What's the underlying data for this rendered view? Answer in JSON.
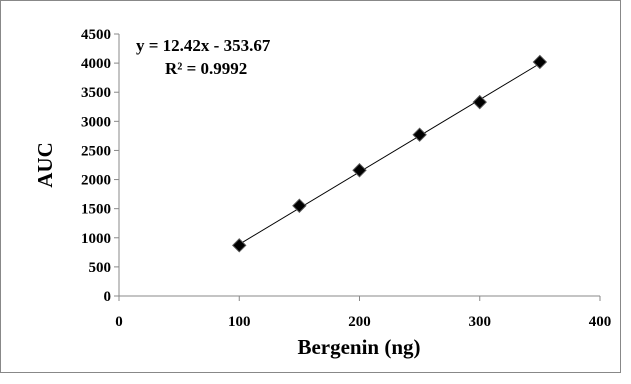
{
  "chart_data": {
    "type": "scatter",
    "title": "",
    "xlabel": "Bergenin (ng)",
    "ylabel": "AUC",
    "xlim": [
      0,
      400
    ],
    "ylim": [
      0,
      4500
    ],
    "x_ticks": [
      0,
      100,
      200,
      300,
      400
    ],
    "y_ticks": [
      0,
      500,
      1000,
      1500,
      2000,
      2500,
      3000,
      3500,
      4000,
      4500
    ],
    "grid": false,
    "legend": "none",
    "marker": "diamond",
    "marker_color": "#000000",
    "series": [
      {
        "x": [
          100,
          150,
          200,
          250,
          300,
          350
        ],
        "y": [
          870,
          1550,
          2160,
          2770,
          3330,
          4020
        ]
      }
    ],
    "trendline": {
      "type": "linear",
      "slope": 12.42,
      "intercept": -353.67,
      "equation": "y = 12.42x - 353.67",
      "r_squared": "R² = 0.9992"
    }
  }
}
